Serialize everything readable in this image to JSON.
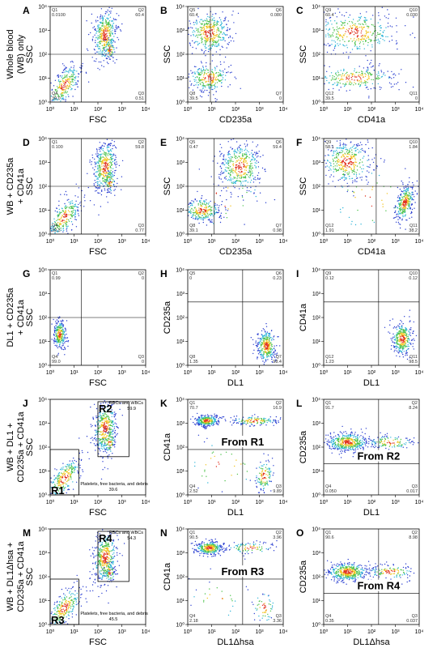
{
  "row_labels": [
    [
      "Whole blood",
      "(WB) only"
    ],
    [
      "WB + CD235a",
      "+ CD41a"
    ],
    [
      "DL1 + CD235a",
      "+ CD41a"
    ],
    [
      "WB + DL1 +",
      "CD235a + CD41a"
    ],
    [
      "WB + DL1Δhsa +",
      "CD235a + CD41a"
    ]
  ],
  "axis_ticks": [
    "10⁰",
    "10¹",
    "10²",
    "10³",
    "10⁴"
  ],
  "panels": [
    {
      "letter": "A",
      "x_label": "FSC",
      "y_label": "SSC",
      "quadrants": [
        {
          "name": "Q1",
          "value": "0.0100"
        },
        {
          "name": "Q2",
          "value": "60.4"
        },
        {
          "name": "Q4",
          "value": "39.0"
        },
        {
          "name": "Q3",
          "value": "0.51"
        }
      ]
    },
    {
      "letter": "B",
      "x_label": "CD235a",
      "y_label": "SSC",
      "quadrants": [
        {
          "name": "Q5",
          "value": "60.4"
        },
        {
          "name": "Q6",
          "value": "0.080"
        },
        {
          "name": "Q8",
          "value": "39.5"
        },
        {
          "name": "Q7",
          "value": "0"
        }
      ]
    },
    {
      "letter": "C",
      "x_label": "CD41a",
      "y_label": "SSC",
      "quadrants": [
        {
          "name": "Q9",
          "value": "60.4"
        },
        {
          "name": "Q10",
          "value": "0.030"
        },
        {
          "name": "Q12",
          "value": "39.5"
        },
        {
          "name": "Q11",
          "value": "0"
        }
      ]
    },
    {
      "letter": "D",
      "x_label": "FSC",
      "y_label": "SSC",
      "quadrants": [
        {
          "name": "Q1",
          "value": "0.100"
        },
        {
          "name": "Q2",
          "value": "59.8"
        },
        {
          "name": "Q4",
          "value": "39.3"
        },
        {
          "name": "Q3",
          "value": "0.77"
        }
      ]
    },
    {
      "letter": "E",
      "x_label": "CD235a",
      "y_label": "SSC",
      "quadrants": [
        {
          "name": "Q5",
          "value": "0.47"
        },
        {
          "name": "Q6",
          "value": "59.4"
        },
        {
          "name": "Q8",
          "value": "39.1"
        },
        {
          "name": "Q7",
          "value": "0.98"
        }
      ]
    },
    {
      "letter": "F",
      "x_label": "CD41a",
      "y_label": "SSC",
      "quadrants": [
        {
          "name": "Q9",
          "value": "58.1"
        },
        {
          "name": "Q10",
          "value": "1.84"
        },
        {
          "name": "Q12",
          "value": "1.91"
        },
        {
          "name": "Q11",
          "value": "38.2"
        }
      ]
    },
    {
      "letter": "G",
      "x_label": "FSC",
      "y_label": "SSC",
      "quadrants": [
        {
          "name": "Q1",
          "value": "0.99"
        },
        {
          "name": "Q2",
          "value": "0"
        },
        {
          "name": "Q4",
          "value": "99.0"
        },
        {
          "name": "Q3",
          "value": "0"
        }
      ]
    },
    {
      "letter": "H",
      "x_label": "DL1",
      "y_label": "CD235a",
      "quadrants": [
        {
          "name": "Q5",
          "value": "0"
        },
        {
          "name": "Q6",
          "value": "0.23"
        },
        {
          "name": "Q8",
          "value": "1.35"
        },
        {
          "name": "Q7",
          "value": "98.4"
        }
      ]
    },
    {
      "letter": "I",
      "x_label": "DL1",
      "y_label": "CD41a",
      "quadrants": [
        {
          "name": "Q9",
          "value": "0.12"
        },
        {
          "name": "Q10",
          "value": "0.12"
        },
        {
          "name": "Q12",
          "value": "1.23"
        },
        {
          "name": "Q11",
          "value": "98.5"
        }
      ]
    },
    {
      "letter": "J",
      "x_label": "FSC",
      "y_label": "SSC",
      "gates": [
        {
          "name": "R2",
          "caption": "RBCs and WBCs",
          "value": "59.9"
        },
        {
          "name": "R1",
          "caption": "Platelets, free bacteria, and debris",
          "value": "39.6"
        }
      ]
    },
    {
      "letter": "K",
      "x_label": "DL1",
      "y_label": "CD41a",
      "annotation": "From R1",
      "quadrants": [
        {
          "name": "Q1",
          "value": "70.7"
        },
        {
          "name": "Q2",
          "value": "16.9"
        },
        {
          "name": "Q4",
          "value": "2.52"
        },
        {
          "name": "Q3",
          "value": "9.89"
        }
      ]
    },
    {
      "letter": "L",
      "x_label": "DL1",
      "y_label": "CD235a",
      "annotation": "From R2",
      "quadrants": [
        {
          "name": "Q1",
          "value": "91.7"
        },
        {
          "name": "Q2",
          "value": "8.24"
        },
        {
          "name": "Q4",
          "value": "0.050"
        },
        {
          "name": "Q3",
          "value": "0.017"
        }
      ]
    },
    {
      "letter": "M",
      "x_label": "FSC",
      "y_label": "SSC",
      "gates": [
        {
          "name": "R4",
          "caption": "RBCs and WBCs",
          "value": "54.3"
        },
        {
          "name": "R3",
          "caption": "Platelets, free bacteria, and debris",
          "value": "45.5"
        }
      ]
    },
    {
      "letter": "N",
      "x_label": "DL1Δhsa",
      "y_label": "CD41a",
      "annotation": "From R3",
      "quadrants": [
        {
          "name": "Q1",
          "value": "90.5"
        },
        {
          "name": "Q2",
          "value": "3.96"
        },
        {
          "name": "Q4",
          "value": "2.18"
        },
        {
          "name": "Q3",
          "value": "3.36"
        }
      ]
    },
    {
      "letter": "O",
      "x_label": "DL1Δhsa",
      "y_label": "CD235a",
      "annotation": "From R4",
      "quadrants": [
        {
          "name": "Q1",
          "value": "90.6"
        },
        {
          "name": "Q2",
          "value": "8.98"
        },
        {
          "name": "Q4",
          "value": "0.35"
        },
        {
          "name": "Q3",
          "value": "0.037"
        }
      ]
    }
  ]
}
